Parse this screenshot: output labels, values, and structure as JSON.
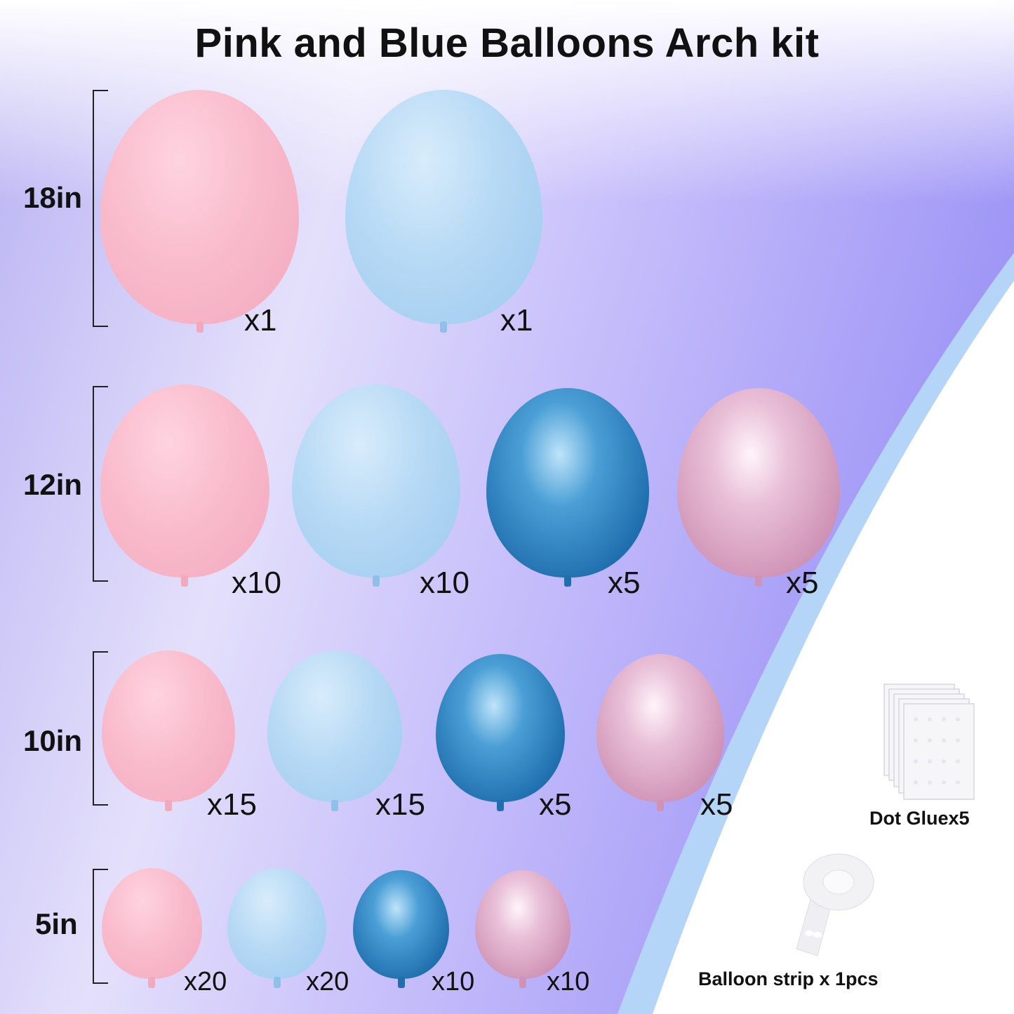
{
  "title": "Pink and Blue Balloons Arch kit",
  "colors": {
    "matte_pink": "#f9bccc",
    "matte_blue": "#b6d9f5",
    "metallic_blue": "#2f82c2",
    "metallic_pink": "#dba8c6",
    "band_purple": "#a8a0f8"
  },
  "rows": [
    {
      "size": "18in",
      "counts": [
        "x1",
        "x1"
      ]
    },
    {
      "size": "12in",
      "counts": [
        "x10",
        "x10",
        "x5",
        "x5"
      ]
    },
    {
      "size": "10in",
      "counts": [
        "x15",
        "x15",
        "x5",
        "x5"
      ]
    },
    {
      "size": "5in",
      "counts": [
        "x20",
        "x20",
        "x10",
        "x10"
      ]
    }
  ],
  "accessories": {
    "dot_glue": "Dot Gluex5",
    "balloon_strip": "Balloon strip x 1pcs"
  }
}
